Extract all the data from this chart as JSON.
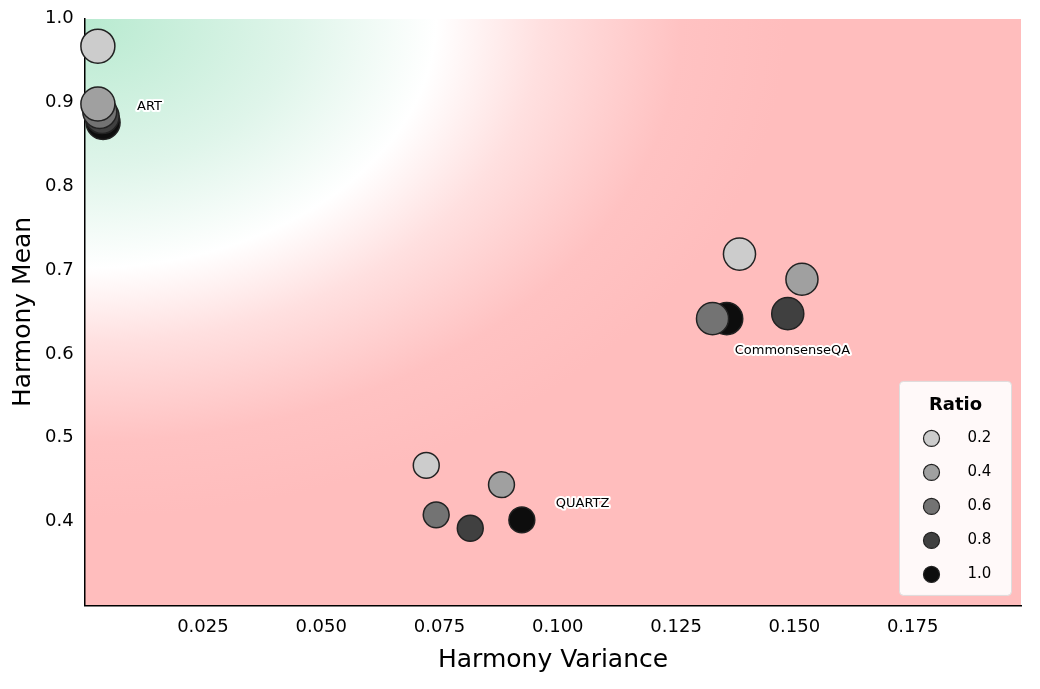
{
  "chart_data": {
    "type": "bubble",
    "xlabel": "Harmony Variance",
    "ylabel": "Harmony Mean",
    "legend_title": "Ratio",
    "legend": "bottom right",
    "grid": false,
    "xlim": [
      0,
      0.198
    ],
    "xticks": [
      {
        "value": 0.025,
        "label": "0.025"
      },
      {
        "value": 0.05,
        "label": "0.050"
      },
      {
        "value": 0.075,
        "label": "0.075"
      },
      {
        "value": 0.1,
        "label": "0.100"
      },
      {
        "value": 0.125,
        "label": "0.125"
      },
      {
        "value": 0.15,
        "label": "0.150"
      },
      {
        "value": 0.175,
        "label": "0.175"
      }
    ],
    "ylim": [
      0.3,
      1.0
    ],
    "yticks": [
      {
        "value": 0.4,
        "label": "0.4"
      },
      {
        "value": 0.5,
        "label": "0.5"
      },
      {
        "value": 0.6,
        "label": "0.6"
      },
      {
        "value": 0.7,
        "label": "0.7"
      },
      {
        "value": 0.8,
        "label": "0.8"
      },
      {
        "value": 0.9,
        "label": "0.9"
      },
      {
        "value": 1.0,
        "label": "1.0"
      }
    ],
    "series": [
      {
        "name": "0.2",
        "color": "#cccccc",
        "x": [
          0.0028,
          0.1384,
          0.0722
        ],
        "values": [
          0.967,
          0.719,
          0.467
        ],
        "sizes": [
          1,
          0.89,
          0.58
        ]
      },
      {
        "name": "0.4",
        "color": "#a0a0a0",
        "x": [
          0.0028,
          0.1516,
          0.0881
        ],
        "values": [
          0.898,
          0.689,
          0.444
        ],
        "sizes": [
          1,
          0.89,
          0.58
        ]
      },
      {
        "name": "0.6",
        "color": "#737373",
        "x": [
          0.0032,
          0.1327,
          0.0743
        ],
        "values": [
          0.889,
          0.642,
          0.408
        ],
        "sizes": [
          1,
          0.89,
          0.58
        ]
      },
      {
        "name": "0.8",
        "color": "#404040",
        "x": [
          0.0037,
          0.1486,
          0.0815
        ],
        "values": [
          0.883,
          0.648,
          0.392
        ],
        "sizes": [
          1,
          0.89,
          0.58
        ]
      },
      {
        "name": "1.0",
        "color": "#0d0d0d",
        "x": [
          0.0039,
          0.1357,
          0.0924
        ],
        "values": [
          0.876,
          0.642,
          0.402
        ],
        "sizes": [
          1,
          0.89,
          0.58
        ]
      }
    ],
    "annotations": [
      "ART",
      "CommonsenseQA",
      "QUARTZ"
    ]
  }
}
